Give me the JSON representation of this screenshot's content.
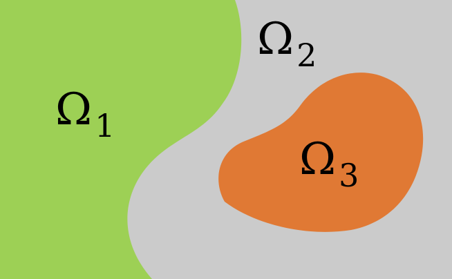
{
  "colors": {
    "omega1": "#9dd055",
    "omega2": "#cbcbcb",
    "omega3": "#e07934"
  },
  "regions": [
    {
      "name": "omega-1",
      "symbol": "Ω",
      "subscript": "1"
    },
    {
      "name": "omega-2",
      "symbol": "Ω",
      "subscript": "2"
    },
    {
      "name": "omega-3",
      "symbol": "Ω",
      "subscript": "3"
    }
  ]
}
